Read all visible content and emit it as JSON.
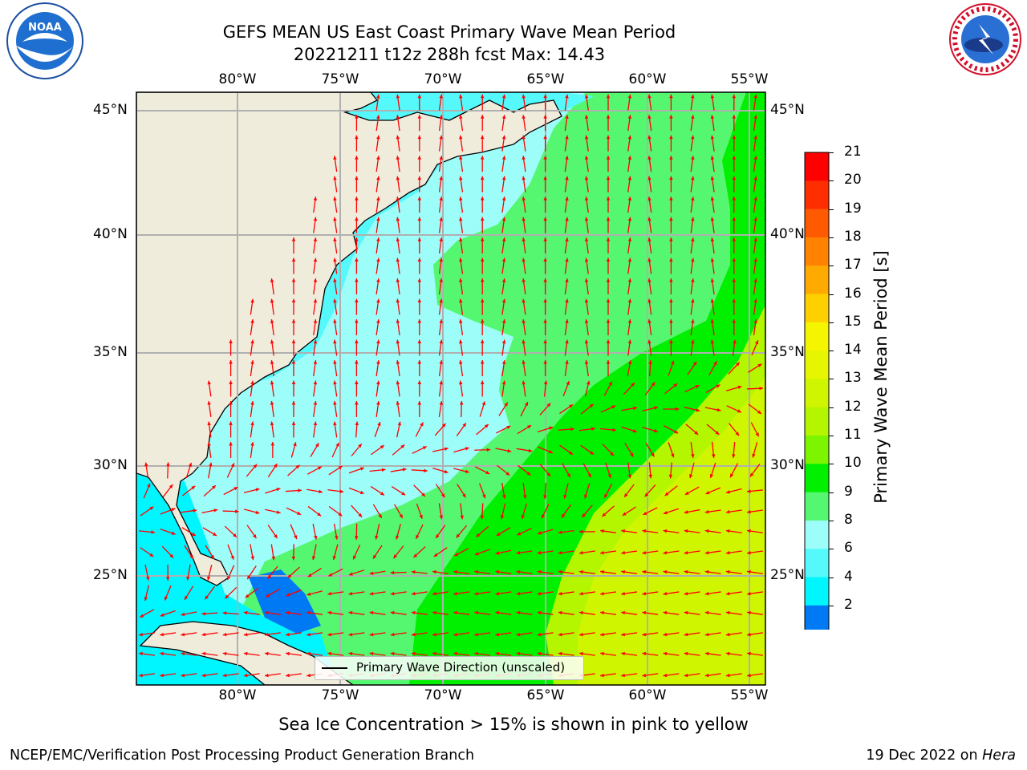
{
  "header": {
    "title_line1": "GEFS MEAN US East Coast Primary Wave Mean Period",
    "title_line2": "20221211 t12z 288h fcst   Max: 14.43"
  },
  "logos": {
    "left": {
      "name": "noaa-logo",
      "text": "NOAA"
    },
    "right": {
      "name": "nws-logo",
      "text": "NATIONAL WEATHER SERVICE"
    }
  },
  "map": {
    "lon_labels": [
      "80°W",
      "75°W",
      "70°W",
      "65°W",
      "60°W",
      "55°W"
    ],
    "lat_labels": [
      "45°N",
      "40°N",
      "35°N",
      "30°N",
      "25°N"
    ],
    "legend_label": "Primary Wave Direction (unscaled)",
    "colors": {
      "land": "#efecdc",
      "ocean_default": "#9dfdf9",
      "arrow": "#ff0000",
      "grid": "#b0b0b0"
    }
  },
  "colorbar": {
    "label": "Primary Wave Mean Period [s]",
    "ticks": [
      "21",
      "20",
      "19",
      "18",
      "17",
      "16",
      "15",
      "14",
      "13",
      "12",
      "11",
      "10",
      "9",
      "8",
      "6",
      "4",
      "2"
    ],
    "colors_top_to_bottom": [
      "#ff0000",
      "#ff2e00",
      "#ff5a00",
      "#ff8200",
      "#ffaa00",
      "#ffd000",
      "#f5f500",
      "#e6f500",
      "#d0f500",
      "#b4f500",
      "#7ef500",
      "#00f000",
      "#55f771",
      "#9dfdf9",
      "#55f9fb",
      "#00f6ff",
      "#0079f5"
    ],
    "underflow_color": "#0000f0"
  },
  "footer": {
    "ice_note": "Sea Ice Concentration > 15% is shown in pink to yellow",
    "left_text": "NCEP/EMC/Verification Post Processing Product Generation Branch",
    "right_date": "19 Dec 2022 on",
    "right_host": "Hera"
  }
}
